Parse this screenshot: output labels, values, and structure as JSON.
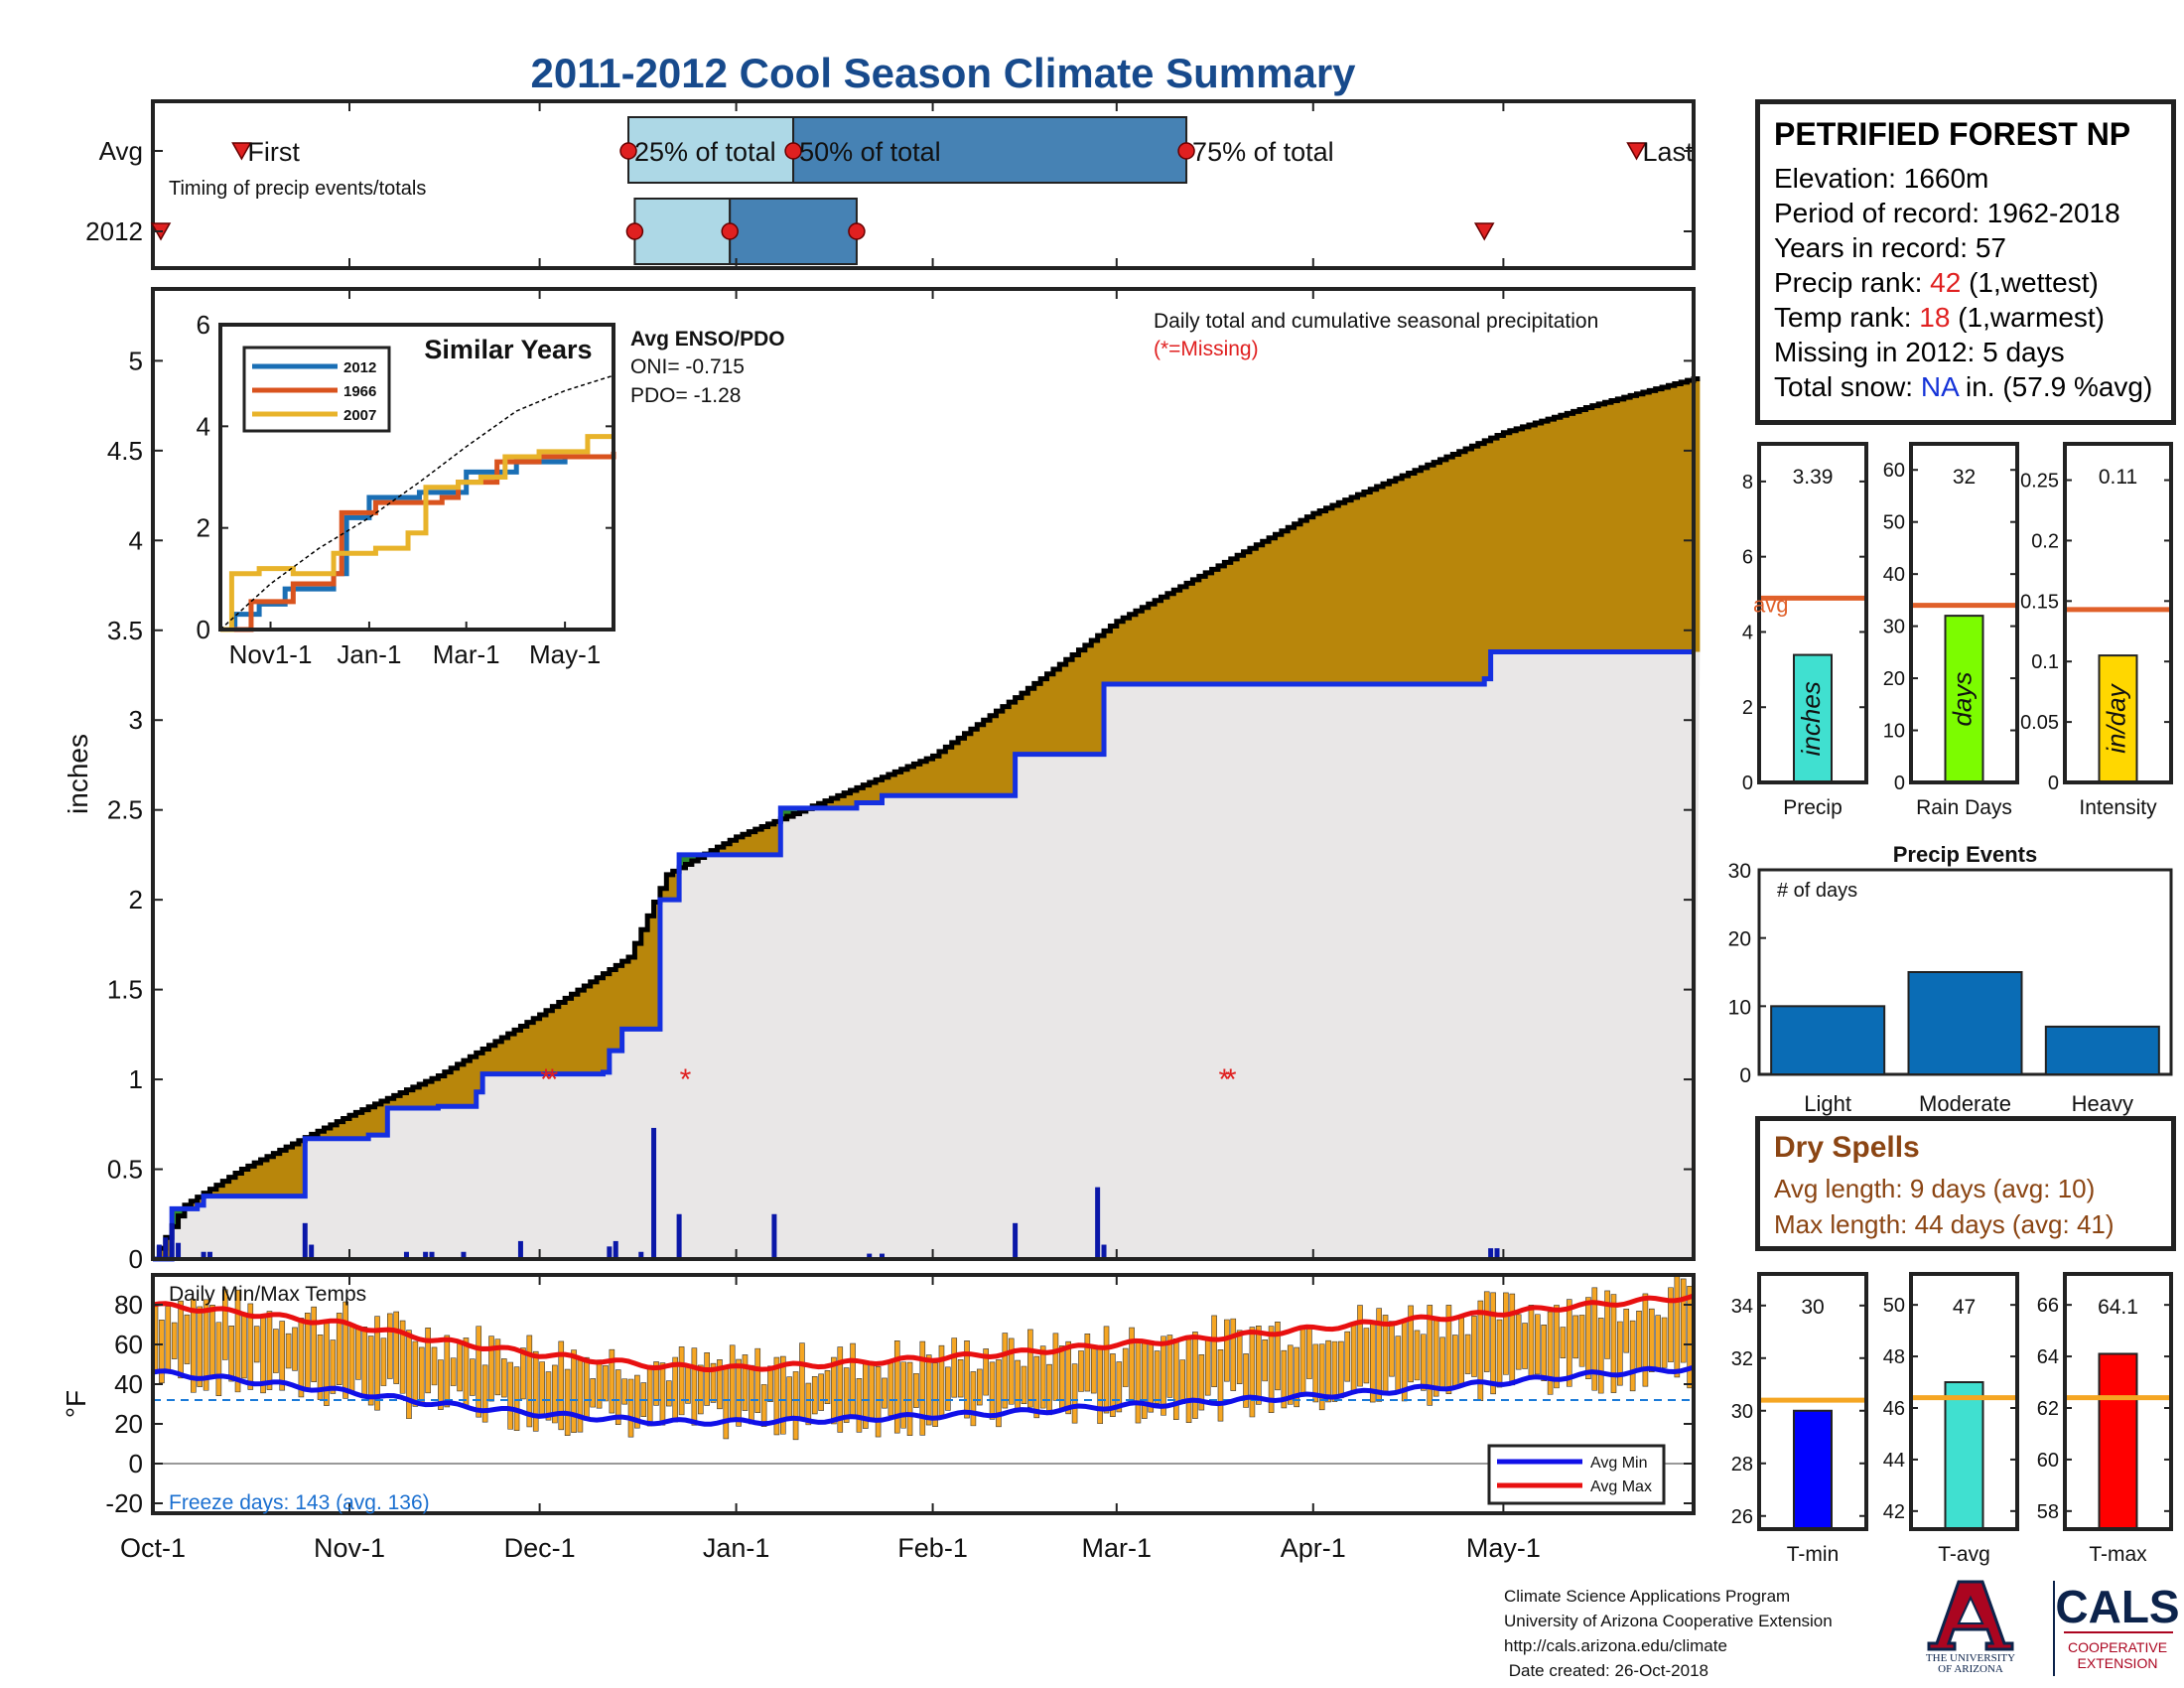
{
  "title": "2011-2012 Cool Season Climate Summary",
  "station": {
    "name": "PETRIFIED FOREST NP",
    "elevation": "Elevation: 1660m",
    "period": "Period of record: 1962-2018",
    "years": "Years in record: 57",
    "precip_rank_label": "Precip rank: ",
    "precip_rank_value": "42",
    "precip_rank_note": " (1,wettest)",
    "temp_rank_label": "Temp rank: ",
    "temp_rank_value": "18",
    "temp_rank_note": " (1,warmest)",
    "missing": "Missing in 2012: 5 days",
    "snow_label": "Total snow: ",
    "snow_value": "NA",
    "snow_note": " in. (57.9 %avg)"
  },
  "dry_spells": {
    "title": "Dry Spells",
    "avg": "Avg length: 9 days (avg: 10)",
    "max": "Max length: 44 days (avg: 41)"
  },
  "footer": {
    "line1": "Climate Science Applications Program",
    "line2": "University of Arizona Cooperative Extension",
    "line3": "http://cals.arizona.edu/climate",
    "line4": " Date created: 26-Oct-2018"
  },
  "logos": {
    "ua_line1": "THE UNIVERSITY",
    "ua_line2": "OF ARIZONA",
    "cals": "CALS",
    "cals_sub1": "COOPERATIVE",
    "cals_sub2": "EXTENSION"
  },
  "colors": {
    "cum_2012": "#000000",
    "cum_avg": "#1530e0",
    "above_fill": "#b8860b",
    "below_fill": "#e9e7e7",
    "bars_daily": "#0a17a8",
    "temp_bar": "#f5a623",
    "avg_line": "#e0602a",
    "orange_line": "#f5a623"
  },
  "chart_data": [
    {
      "id": "timing",
      "type": "bar",
      "subtitle": "Timing of precip events/totals",
      "categories": [
        "Avg",
        "2012"
      ],
      "xrange_dates": [
        "2011-10-01",
        "2012-05-31"
      ],
      "avg": {
        "first": "2011-10-15",
        "p25": "2011-12-15",
        "p50": "2012-01-10",
        "p75": "2012-03-12",
        "last": "2012-05-22",
        "labels": [
          "First",
          "25% of total",
          "50% of total",
          "75% of total",
          "Last"
        ]
      },
      "y2012": {
        "first": "2011-10-01",
        "p25": "2011-12-16",
        "p50": "2011-12-31",
        "p75": "2012-01-20",
        "last": "2012-04-28"
      }
    },
    {
      "id": "precip",
      "type": "area",
      "annotation": "Daily total and cumulative seasonal precipitation",
      "annotation2": "(*=Missing)",
      "ylabel": "inches",
      "ylim": [
        0,
        5.4
      ],
      "yticks": [
        "0",
        "0.5",
        "1",
        "1.5",
        "2",
        "2.5",
        "3",
        "3.5",
        "4",
        "4.5",
        "5"
      ],
      "xlim_dates": [
        "2011-10-01",
        "2012-05-31"
      ],
      "xtick_labels": [
        "Oct-1",
        "Nov-1",
        "Dec-1",
        "Jan-1",
        "Feb-1",
        "Mar-1",
        "Apr-1",
        "May-1"
      ],
      "xtick_dates": [
        "2011-10-01",
        "2011-11-01",
        "2011-12-01",
        "2012-01-01",
        "2012-02-01",
        "2012-03-01",
        "2012-04-01",
        "2012-05-01"
      ],
      "avg_cumulative": [
        [
          "2011-10-01",
          0
        ],
        [
          "2011-10-04",
          0.28
        ],
        [
          "2011-10-08",
          0.3
        ],
        [
          "2011-10-09",
          0.35
        ],
        [
          "2011-10-24",
          0.35
        ],
        [
          "2011-10-25",
          0.67
        ],
        [
          "2011-11-04",
          0.69
        ],
        [
          "2011-11-07",
          0.84
        ],
        [
          "2011-11-15",
          0.85
        ],
        [
          "2011-11-21",
          0.93
        ],
        [
          "2011-11-22",
          1.03
        ],
        [
          "2011-12-11",
          1.04
        ],
        [
          "2011-12-12",
          1.16
        ],
        [
          "2011-12-14",
          1.28
        ],
        [
          "2011-12-19",
          1.28
        ],
        [
          "2011-12-20",
          2.0
        ],
        [
          "2011-12-23",
          2.25
        ],
        [
          "2012-01-07",
          2.25
        ],
        [
          "2012-01-08",
          2.51
        ],
        [
          "2012-01-20",
          2.54
        ],
        [
          "2012-01-24",
          2.58
        ],
        [
          "2012-02-13",
          2.58
        ],
        [
          "2012-02-14",
          2.81
        ],
        [
          "2012-02-27",
          2.81
        ],
        [
          "2012-02-28",
          3.2
        ],
        [
          "2012-04-14",
          3.2
        ],
        [
          "2012-04-28",
          3.23
        ],
        [
          "2012-04-29",
          3.38
        ],
        [
          "2012-05-31",
          3.38
        ]
      ],
      "y2012_cumulative": [
        [
          "2011-10-01",
          0.0
        ],
        [
          "2011-10-06",
          0.3
        ],
        [
          "2011-10-15",
          0.5
        ],
        [
          "2011-11-01",
          0.8
        ],
        [
          "2011-11-15",
          1.02
        ],
        [
          "2011-12-01",
          1.36
        ],
        [
          "2011-12-15",
          1.68
        ],
        [
          "2011-12-21",
          2.14
        ],
        [
          "2012-01-01",
          2.35
        ],
        [
          "2012-01-15",
          2.55
        ],
        [
          "2012-02-01",
          2.8
        ],
        [
          "2012-02-15",
          3.15
        ],
        [
          "2012-03-01",
          3.55
        ],
        [
          "2012-03-15",
          3.82
        ],
        [
          "2012-04-01",
          4.15
        ],
        [
          "2012-04-15",
          4.36
        ],
        [
          "2012-05-01",
          4.6
        ],
        [
          "2012-05-15",
          4.75
        ],
        [
          "2012-05-31",
          4.9
        ]
      ],
      "daily_bars": [
        [
          "2011-10-02",
          0.08
        ],
        [
          "2011-10-03",
          0.12
        ],
        [
          "2011-10-04",
          0.2
        ],
        [
          "2011-10-05",
          0.09
        ],
        [
          "2011-10-09",
          0.04
        ],
        [
          "2011-10-10",
          0.04
        ],
        [
          "2011-10-25",
          0.2
        ],
        [
          "2011-10-26",
          0.08
        ],
        [
          "2011-11-10",
          0.04
        ],
        [
          "2011-11-13",
          0.04
        ],
        [
          "2011-11-14",
          0.04
        ],
        [
          "2011-11-19",
          0.04
        ],
        [
          "2011-11-28",
          0.1
        ],
        [
          "2011-12-12",
          0.07
        ],
        [
          "2011-12-13",
          0.1
        ],
        [
          "2011-12-17",
          0.04
        ],
        [
          "2011-12-19",
          0.73
        ],
        [
          "2011-12-23",
          0.25
        ],
        [
          "2012-01-07",
          0.25
        ],
        [
          "2012-01-22",
          0.03
        ],
        [
          "2012-01-24",
          0.03
        ],
        [
          "2012-02-14",
          0.2
        ],
        [
          "2012-02-27",
          0.4
        ],
        [
          "2012-02-28",
          0.08
        ],
        [
          "2012-04-29",
          0.06
        ],
        [
          "2012-04-30",
          0.06
        ]
      ],
      "missing_dates": [
        "2011-12-02",
        "2011-12-03",
        "2011-12-24",
        "2012-03-18",
        "2012-03-19"
      ],
      "missing_value": 1.0
    },
    {
      "id": "similar",
      "type": "line",
      "title": "Similar Years",
      "ylim": [
        0,
        6
      ],
      "yticks": [
        "0",
        "2",
        "4",
        "6"
      ],
      "xtick_labels": [
        "Nov1-1",
        "Jan-1",
        "Mar-1",
        "May-1"
      ],
      "xtick_dates": [
        "2011-11-01",
        "2012-01-01",
        "2012-03-01",
        "2012-05-01"
      ],
      "enso_title": "Avg ENSO/PDO",
      "oni": "ONI= -0.715",
      "pdo": "PDO= -1.28",
      "series": [
        {
          "name": "2012",
          "color": "#1a6fb5",
          "points": [
            [
              "2011-10-01",
              0
            ],
            [
              "2011-10-10",
              0.3
            ],
            [
              "2011-10-25",
              0.5
            ],
            [
              "2011-11-10",
              0.8
            ],
            [
              "2011-12-10",
              1.1
            ],
            [
              "2011-12-18",
              2.2
            ],
            [
              "2012-01-01",
              2.6
            ],
            [
              "2012-02-01",
              2.7
            ],
            [
              "2012-03-01",
              3.1
            ],
            [
              "2012-04-01",
              3.3
            ],
            [
              "2012-05-01",
              3.4
            ],
            [
              "2012-05-31",
              3.4
            ]
          ]
        },
        {
          "name": "1966",
          "color": "#d9531e",
          "points": [
            [
              "2011-10-01",
              0
            ],
            [
              "2011-10-20",
              0.55
            ],
            [
              "2011-11-15",
              0.9
            ],
            [
              "2011-12-10",
              1.1
            ],
            [
              "2011-12-15",
              2.3
            ],
            [
              "2012-01-05",
              2.5
            ],
            [
              "2012-02-15",
              2.6
            ],
            [
              "2012-02-25",
              2.9
            ],
            [
              "2012-03-20",
              3.3
            ],
            [
              "2012-04-15",
              3.4
            ],
            [
              "2012-05-31",
              3.5
            ]
          ]
        },
        {
          "name": "2007",
          "color": "#e8b32a",
          "points": [
            [
              "2011-10-01",
              0
            ],
            [
              "2011-10-08",
              1.1
            ],
            [
              "2011-10-25",
              1.2
            ],
            [
              "2011-11-15",
              1.1
            ],
            [
              "2011-12-10",
              1.5
            ],
            [
              "2012-01-05",
              1.6
            ],
            [
              "2012-01-25",
              1.9
            ],
            [
              "2012-02-05",
              2.8
            ],
            [
              "2012-02-25",
              2.9
            ],
            [
              "2012-03-10",
              3.0
            ],
            [
              "2012-03-25",
              3.4
            ],
            [
              "2012-04-15",
              3.5
            ],
            [
              "2012-05-15",
              3.8
            ],
            [
              "2012-05-31",
              3.8
            ]
          ]
        },
        {
          "name": "Avg ENSO",
          "color": "#000000",
          "points": [
            [
              "2011-10-01",
              0
            ],
            [
              "2011-11-01",
              0.9
            ],
            [
              "2011-12-01",
              1.6
            ],
            [
              "2012-01-01",
              2.2
            ],
            [
              "2012-02-01",
              2.9
            ],
            [
              "2012-03-01",
              3.6
            ],
            [
              "2012-04-01",
              4.3
            ],
            [
              "2012-05-01",
              4.7
            ],
            [
              "2012-05-31",
              5.0
            ]
          ]
        }
      ]
    },
    {
      "id": "summary_bars",
      "type": "bar",
      "panels": [
        {
          "label": "Precip",
          "inner": "inches",
          "value": 3.39,
          "value_label": "3.39",
          "avg": 4.9,
          "avg_text": "avg",
          "ylim": [
            0,
            9
          ],
          "yticks": [
            0,
            2,
            4,
            6,
            8
          ],
          "color": "#40e0d0"
        },
        {
          "label": "Rain Days",
          "inner": "days",
          "value": 32,
          "value_label": "32",
          "avg": 34,
          "ylim": [
            0,
            65
          ],
          "yticks": [
            0,
            10,
            20,
            30,
            40,
            50,
            60
          ],
          "color": "#7cfc00"
        },
        {
          "label": "Intensity",
          "inner": "in/day",
          "value": 0.105,
          "value_label": "0.11",
          "avg": 0.143,
          "ylim": [
            0,
            0.28
          ],
          "yticks": [
            0,
            0.05,
            0.1,
            0.15,
            0.2,
            0.25
          ],
          "tick_labels": [
            "0",
            "0.05",
            "0.1",
            "0.15",
            "0.2",
            "0.25"
          ],
          "color": "#ffd700"
        }
      ]
    },
    {
      "id": "events",
      "type": "bar",
      "title": "Precip Events",
      "ylabel": "# of days",
      "categories": [
        "Light",
        "Moderate",
        "Heavy"
      ],
      "values": [
        10,
        15,
        7
      ],
      "ylim": [
        0,
        30
      ],
      "yticks": [
        0,
        10,
        20,
        30
      ],
      "color": "#0a6cb5"
    },
    {
      "id": "temps",
      "type": "bar",
      "title": "Daily Min/Max Temps",
      "ylabel": "°F",
      "ylim": [
        -25,
        95
      ],
      "yticks": [
        "-20",
        "0",
        "20",
        "40",
        "60",
        "80"
      ],
      "freeze_line": 32,
      "freeze_text": "Freeze days: 143 (avg. 136)",
      "legend": [
        "Avg Min",
        "Avg Max"
      ],
      "avg_max": [
        [
          "2011-10-01",
          80
        ],
        [
          "2011-10-15",
          76
        ],
        [
          "2011-11-01",
          70
        ],
        [
          "2011-11-15",
          62
        ],
        [
          "2011-12-01",
          55
        ],
        [
          "2011-12-20",
          49
        ],
        [
          "2012-01-01",
          48
        ],
        [
          "2012-01-15",
          50
        ],
        [
          "2012-02-01",
          53
        ],
        [
          "2012-02-15",
          56
        ],
        [
          "2012-03-01",
          60
        ],
        [
          "2012-03-15",
          63
        ],
        [
          "2012-04-01",
          68
        ],
        [
          "2012-04-15",
          72
        ],
        [
          "2012-05-01",
          76
        ],
        [
          "2012-05-15",
          80
        ],
        [
          "2012-05-31",
          84
        ]
      ],
      "avg_min": [
        [
          "2011-10-01",
          46
        ],
        [
          "2011-10-15",
          42
        ],
        [
          "2011-11-01",
          36
        ],
        [
          "2011-11-15",
          30
        ],
        [
          "2011-12-01",
          25
        ],
        [
          "2011-12-20",
          21
        ],
        [
          "2012-01-01",
          21
        ],
        [
          "2012-01-15",
          22
        ],
        [
          "2012-02-01",
          24
        ],
        [
          "2012-02-15",
          26
        ],
        [
          "2012-03-01",
          29
        ],
        [
          "2012-03-15",
          31
        ],
        [
          "2012-04-01",
          34
        ],
        [
          "2012-04-15",
          37
        ],
        [
          "2012-05-01",
          41
        ],
        [
          "2012-05-15",
          45
        ],
        [
          "2012-05-31",
          48
        ]
      ]
    },
    {
      "id": "temp_summary",
      "type": "bar",
      "panels": [
        {
          "label": "T-min",
          "value": 30,
          "value_label": "30",
          "avg": 30.4,
          "ylim": [
            25.5,
            35.2
          ],
          "yticks": [
            26,
            28,
            30,
            32,
            34
          ],
          "color": "#0000ff"
        },
        {
          "label": "T-avg",
          "value": 47,
          "value_label": "47",
          "avg": 46.4,
          "ylim": [
            41.3,
            51.2
          ],
          "yticks": [
            42,
            44,
            46,
            48,
            50
          ],
          "color": "#40e0d0"
        },
        {
          "label": "T-max",
          "value": 64.1,
          "value_label": "64.1",
          "avg": 62.4,
          "ylim": [
            57.3,
            67.2
          ],
          "yticks": [
            58,
            60,
            62,
            64,
            66
          ],
          "color": "#ff0000"
        }
      ]
    }
  ]
}
